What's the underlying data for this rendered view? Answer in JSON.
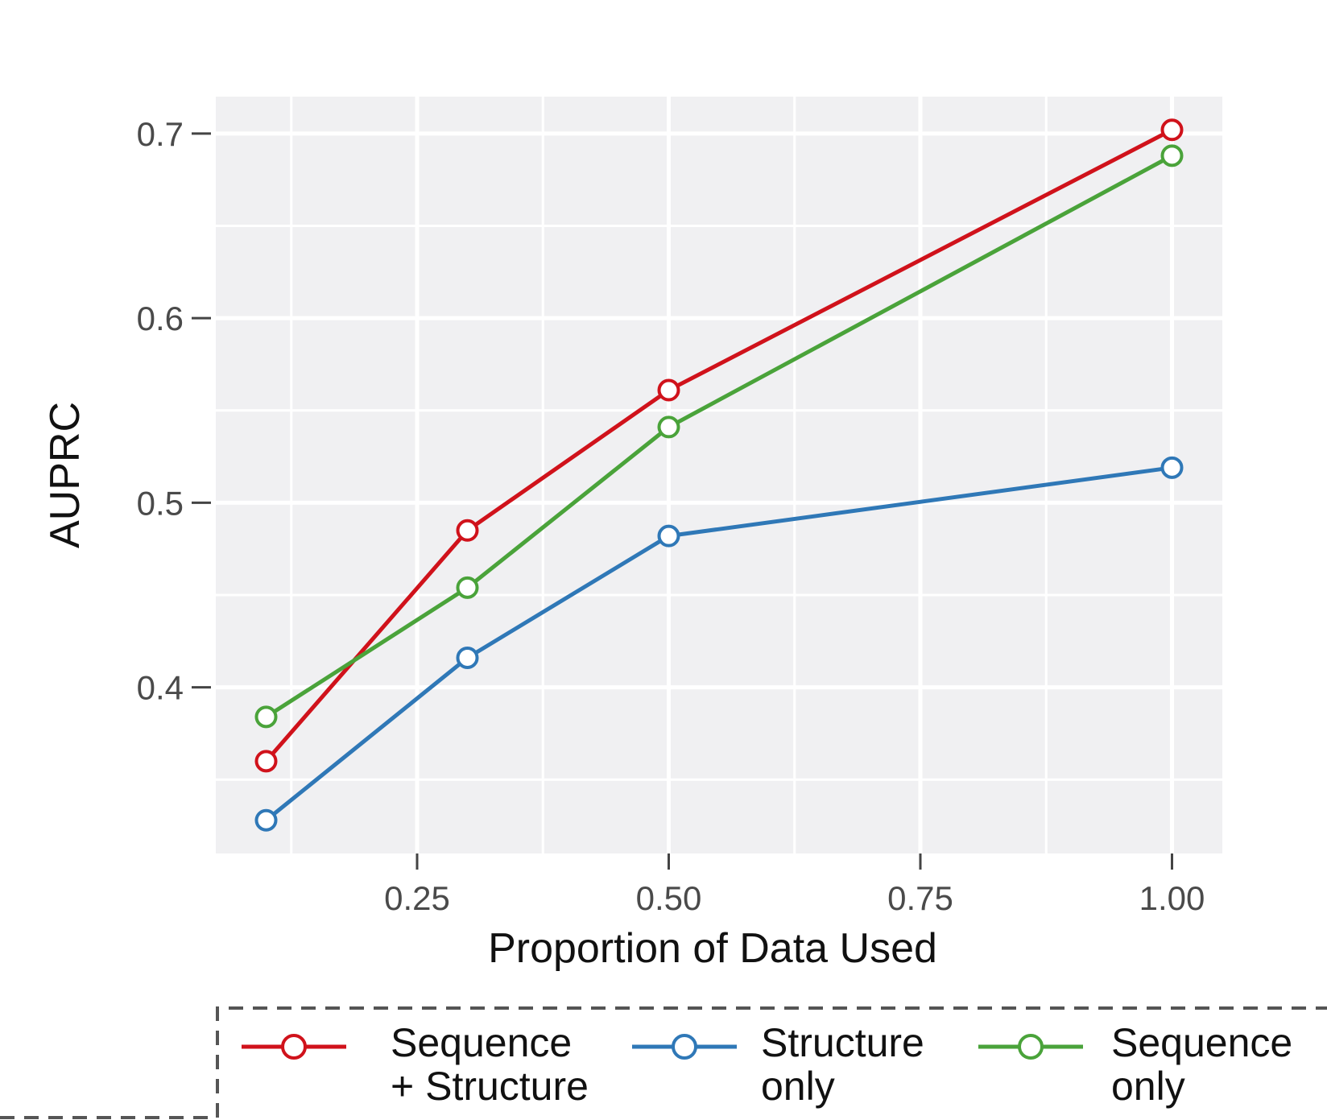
{
  "chart_data": {
    "type": "line",
    "title": "",
    "xlabel": "Proportion of Data Used",
    "ylabel": "AUPRC",
    "xlim": [
      0.05,
      1.05
    ],
    "ylim": [
      0.31,
      0.72
    ],
    "xticks": [
      0.25,
      0.5,
      0.75,
      1.0
    ],
    "xtick_labels": [
      "0.25",
      "0.50",
      "0.75",
      "1.00"
    ],
    "yticks": [
      0.4,
      0.5,
      0.6,
      0.7
    ],
    "ytick_labels": [
      "0.4",
      "0.5",
      "0.6",
      "0.7"
    ],
    "x": [
      0.1,
      0.3,
      0.5,
      1.0
    ],
    "grid": true,
    "legend_position": "bottom",
    "series": [
      {
        "name_lines": [
          "Sequence",
          "+ Structure"
        ],
        "color": "#d0121b",
        "values": [
          0.36,
          0.485,
          0.561,
          0.702
        ]
      },
      {
        "name_lines": [
          "Structure",
          "only"
        ],
        "color": "#2f78b7",
        "values": [
          0.328,
          0.416,
          0.482,
          0.519
        ]
      },
      {
        "name_lines": [
          "Sequence",
          "only"
        ],
        "color": "#4aa33a",
        "values": [
          0.384,
          0.454,
          0.541,
          0.688
        ]
      }
    ]
  }
}
